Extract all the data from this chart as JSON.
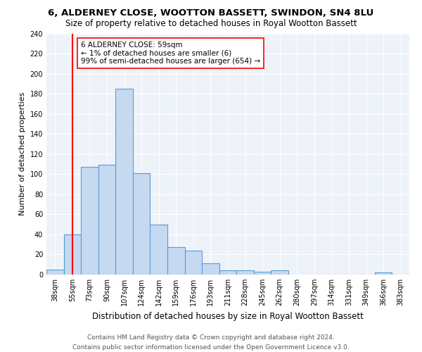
{
  "title": "6, ALDERNEY CLOSE, WOOTTON BASSETT, SWINDON, SN4 8LU",
  "subtitle": "Size of property relative to detached houses in Royal Wootton Bassett",
  "xlabel": "Distribution of detached houses by size in Royal Wootton Bassett",
  "ylabel": "Number of detached properties",
  "bin_labels": [
    "38sqm",
    "55sqm",
    "73sqm",
    "90sqm",
    "107sqm",
    "124sqm",
    "142sqm",
    "159sqm",
    "176sqm",
    "193sqm",
    "211sqm",
    "228sqm",
    "245sqm",
    "262sqm",
    "280sqm",
    "297sqm",
    "314sqm",
    "331sqm",
    "349sqm",
    "366sqm",
    "383sqm"
  ],
  "bar_heights": [
    5,
    40,
    107,
    109,
    185,
    101,
    50,
    27,
    24,
    11,
    4,
    4,
    3,
    4,
    0,
    0,
    0,
    0,
    0,
    2,
    0
  ],
  "bar_color": "#c5d9f1",
  "bar_edgecolor": "#5b9bd5",
  "vline_x": 1,
  "vline_color": "#ff0000",
  "annotation_line1": "6 ALDERNEY CLOSE: 59sqm",
  "annotation_line2": "← 1% of detached houses are smaller (6)",
  "annotation_line3": "99% of semi-detached houses are larger (654) →",
  "annotation_box_color": "#ffffff",
  "annotation_box_edgecolor": "#ff0000",
  "ylim": [
    0,
    240
  ],
  "yticks": [
    0,
    20,
    40,
    60,
    80,
    100,
    120,
    140,
    160,
    180,
    200,
    220,
    240
  ],
  "background_color": "#eef2f9",
  "footer_line1": "Contains HM Land Registry data © Crown copyright and database right 2024.",
  "footer_line2": "Contains public sector information licensed under the Open Government Licence v3.0.",
  "title_fontsize": 9.5,
  "subtitle_fontsize": 8.5,
  "xlabel_fontsize": 8.5,
  "ylabel_fontsize": 8,
  "tick_fontsize": 7,
  "annot_fontsize": 7.5,
  "footer_fontsize": 6.5
}
